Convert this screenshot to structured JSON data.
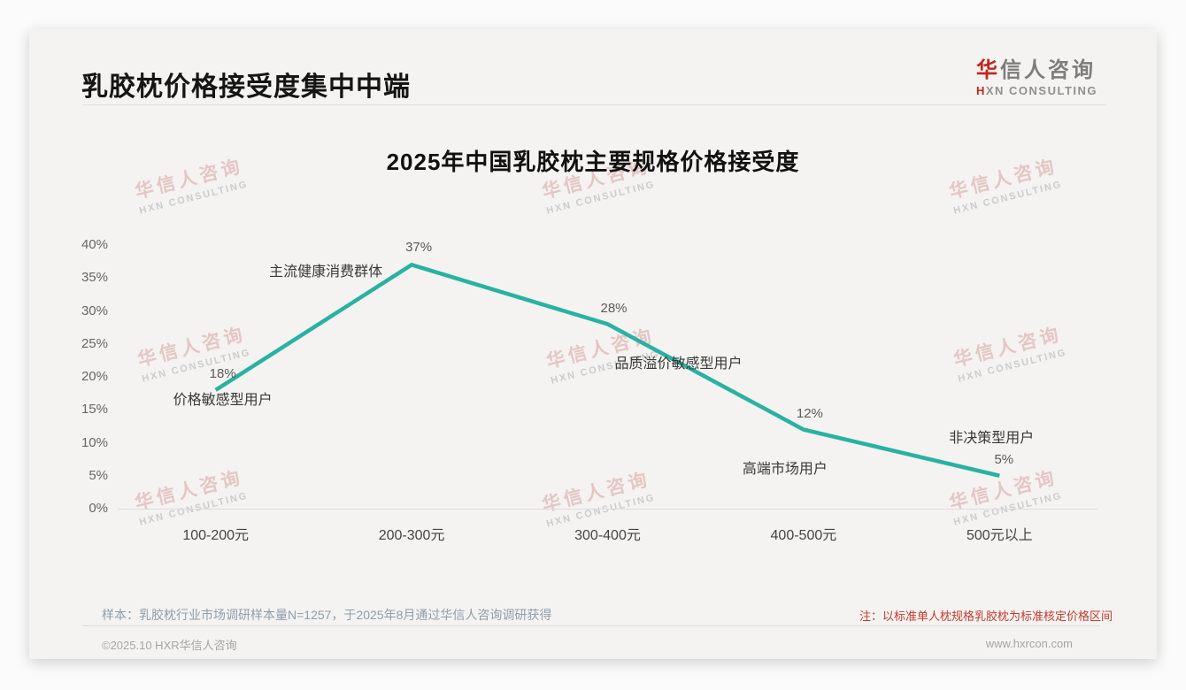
{
  "header": {
    "title": "乳胶枕价格接受度集中中端",
    "logo": {
      "brand_red": "华",
      "brand_gray": "信人咨询",
      "subtitle_red": "H",
      "subtitle_gray": "XN CONSULTING"
    },
    "watermark": {
      "line1": "华信人咨询",
      "line2": "HXN CONSULTING"
    }
  },
  "chart_data": {
    "type": "line",
    "title": "2025年中国乳胶枕主要规格价格接受度",
    "categories": [
      "100-200元",
      "200-300元",
      "300-400元",
      "400-500元",
      "500元以上"
    ],
    "values": [
      18,
      37,
      28,
      12,
      5
    ],
    "point_labels": [
      "18%",
      "37%",
      "28%",
      "12%",
      "5%"
    ],
    "annotations": [
      "价格敏感型用户",
      "主流健康消费群体",
      "品质溢价敏感型用户",
      "高端市场用户",
      "非决策型用户"
    ],
    "xlabel": "",
    "ylabel": "",
    "ylim": [
      0,
      40
    ],
    "yticks": [
      0,
      5,
      10,
      15,
      20,
      25,
      30,
      35,
      40
    ],
    "ytick_labels": [
      "0%",
      "5%",
      "10%",
      "15%",
      "20%",
      "25%",
      "30%",
      "35%",
      "40%"
    ],
    "grid": false,
    "legend": "none",
    "line_color": "#29b2a2"
  },
  "footer": {
    "sample_note": "样本：乳胶枕行业市场调研样本量N=1257，于2025年8月通过华信人咨询调研获得",
    "red_note": "注：以标准单人枕规格乳胶枕为标准核定价格区间",
    "copyright": "©2025.10 HXR华信人咨询",
    "website": "www.hxrcon.com"
  },
  "colors": {
    "accent_red": "#c23b2e",
    "line_teal": "#29b2a2"
  }
}
